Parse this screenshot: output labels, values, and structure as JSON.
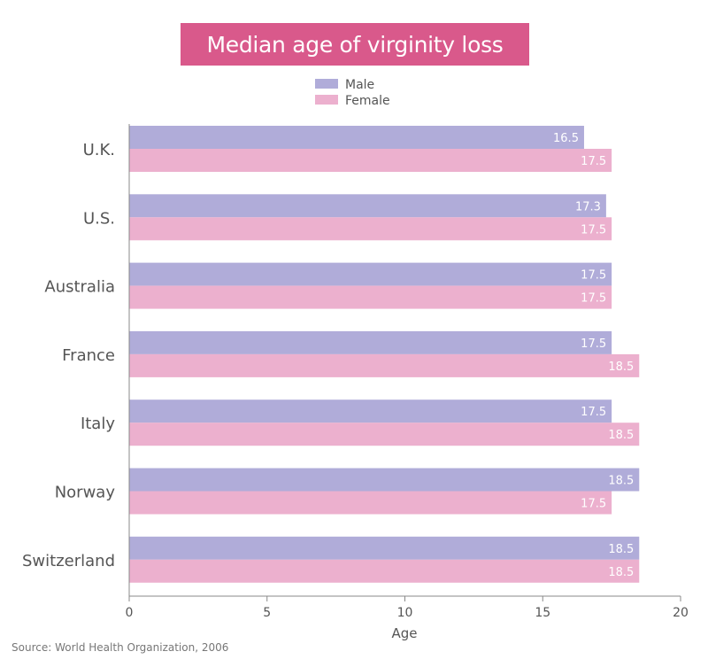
{
  "chart_data": {
    "type": "bar",
    "orientation": "horizontal",
    "title": "Median age of virginity loss",
    "xlabel": "Age",
    "ylabel": "",
    "xlim": [
      0,
      20
    ],
    "xticks": [
      0,
      5,
      10,
      15,
      20
    ],
    "categories": [
      "U.K.",
      "U.S.",
      "Australia",
      "France",
      "Italy",
      "Norway",
      "Switzerland"
    ],
    "series": [
      {
        "name": "Male",
        "color": "#b0acd9",
        "values": [
          16.5,
          17.3,
          17.5,
          17.5,
          17.5,
          18.5,
          18.5
        ]
      },
      {
        "name": "Female",
        "color": "#ecb0ce",
        "values": [
          17.5,
          17.5,
          17.5,
          18.5,
          18.5,
          17.5,
          18.5
        ]
      }
    ],
    "data_labels": true,
    "legend_position": "top-center",
    "grid": false
  },
  "source": "Source: World Health Organization, 2006",
  "colors": {
    "title_background": "#d9598b",
    "title_text": "#ffffff"
  }
}
